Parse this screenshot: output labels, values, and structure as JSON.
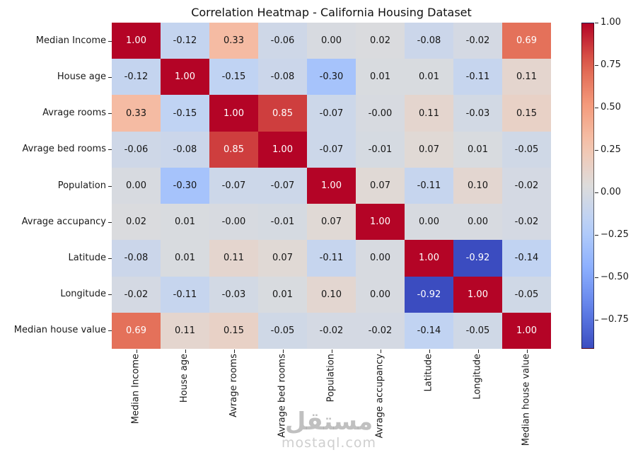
{
  "chart_data": {
    "type": "heatmap",
    "title": "Correlation Heatmap - California Housing Dataset",
    "colormap": "coolwarm",
    "vmin": -0.92,
    "vmax": 1.0,
    "annotated": true,
    "legend_position": "right",
    "labels": [
      "Median Income",
      "House age",
      "Avrage rooms",
      "Avrage bed rooms",
      "Population",
      "Avrage accupancy",
      "Latitude",
      "Longitude",
      "Median house value"
    ],
    "matrix": [
      [
        "1.00",
        "-0.12",
        "0.33",
        "-0.06",
        "0.00",
        "0.02",
        "-0.08",
        "-0.02",
        "0.69"
      ],
      [
        "-0.12",
        "1.00",
        "-0.15",
        "-0.08",
        "-0.30",
        "0.01",
        "0.01",
        "-0.11",
        "0.11"
      ],
      [
        "0.33",
        "-0.15",
        "1.00",
        "0.85",
        "-0.07",
        "-0.00",
        "0.11",
        "-0.03",
        "0.15"
      ],
      [
        "-0.06",
        "-0.08",
        "0.85",
        "1.00",
        "-0.07",
        "-0.01",
        "0.07",
        "0.01",
        "-0.05"
      ],
      [
        "0.00",
        "-0.30",
        "-0.07",
        "-0.07",
        "1.00",
        "0.07",
        "-0.11",
        "0.10",
        "-0.02"
      ],
      [
        "0.02",
        "0.01",
        "-0.00",
        "-0.01",
        "0.07",
        "1.00",
        "0.00",
        "0.00",
        "-0.02"
      ],
      [
        "-0.08",
        "0.01",
        "0.11",
        "0.07",
        "-0.11",
        "0.00",
        "1.00",
        "-0.92",
        "-0.14"
      ],
      [
        "-0.02",
        "-0.11",
        "-0.03",
        "0.01",
        "0.10",
        "0.00",
        "-0.92",
        "1.00",
        "-0.05"
      ],
      [
        "0.69",
        "0.11",
        "0.15",
        "-0.05",
        "-0.02",
        "-0.02",
        "-0.14",
        "-0.05",
        "1.00"
      ]
    ],
    "colorbar_ticks": [
      {
        "label": "1.00",
        "value": 1.0
      },
      {
        "label": "0.75",
        "value": 0.75
      },
      {
        "label": "0.50",
        "value": 0.5
      },
      {
        "label": "0.25",
        "value": 0.25
      },
      {
        "label": "0.00",
        "value": 0.0
      },
      {
        "label": "−0.25",
        "value": -0.25
      },
      {
        "label": "−0.50",
        "value": -0.5
      },
      {
        "label": "−0.75",
        "value": -0.75
      }
    ]
  },
  "watermark": {
    "line1": "مستقل",
    "line2": "mostaql.com"
  }
}
